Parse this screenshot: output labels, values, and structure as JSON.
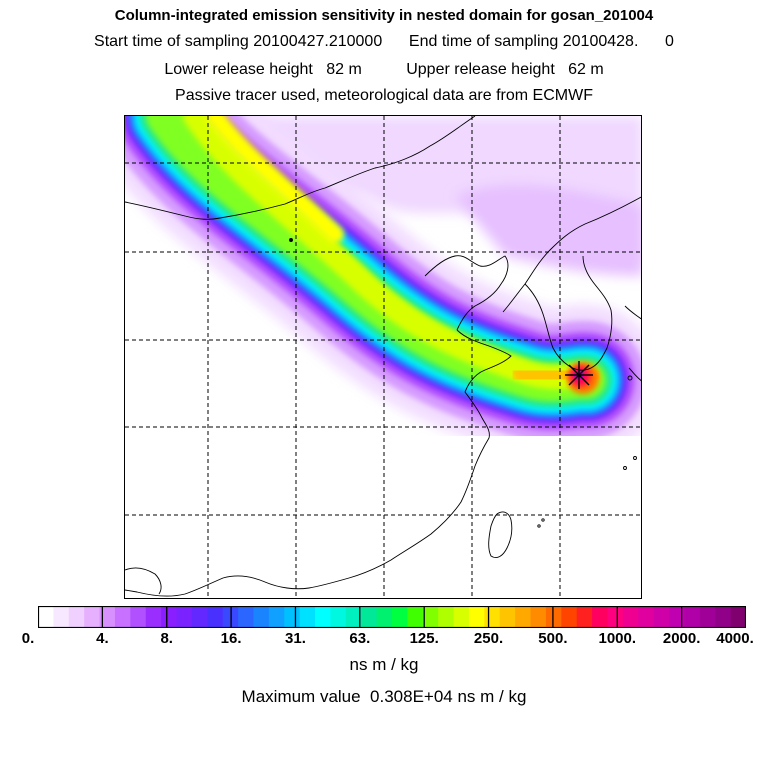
{
  "header": {
    "title": "Column-integrated emission sensitivity in nested domain for gosan_201004",
    "line2": "Start time of sampling 20100427.210000      End time of sampling 20100428.      0",
    "line3": "Lower release height   82 m          Upper release height   62 m",
    "line4": "Passive tracer used, meteorological data are from ECMWF"
  },
  "colorbar": {
    "tick_labels": [
      "0.",
      "4.",
      "8.",
      "16.",
      "31.",
      "63.",
      "125.",
      "250.",
      "500.",
      "1000.",
      "2000.",
      "4000."
    ],
    "colors": [
      "#ffffff",
      "#f8e8ff",
      "#f0d0ff",
      "#e6b0ff",
      "#d890ff",
      "#c870ff",
      "#b050ff",
      "#9a2eff",
      "#8a1eff",
      "#7a22ff",
      "#6228ff",
      "#4a30ff",
      "#3a48ff",
      "#2a66ff",
      "#1a84ff",
      "#10a0ff",
      "#00c0ff",
      "#00e0ff",
      "#00ffff",
      "#00f8e0",
      "#00f0c0",
      "#00e898",
      "#00f070",
      "#00ff40",
      "#40ff00",
      "#80ff00",
      "#b0ff00",
      "#d8ff00",
      "#ffff00",
      "#ffe000",
      "#ffc400",
      "#ffa800",
      "#ff8c00",
      "#ff6a00",
      "#ff4400",
      "#ff2020",
      "#ff0060",
      "#ff0080",
      "#f00090",
      "#e000a0",
      "#d000a8",
      "#c000b0",
      "#b000a8",
      "#a00098",
      "#900088",
      "#800070"
    ],
    "units": "ns m / kg",
    "max_label": "Maximum value  0.308E+04 ns m / kg"
  },
  "map": {
    "release_marker": "star-marker",
    "plume_colors": {
      "outer": "#f2dcff",
      "light": "#e2b4ff",
      "mid": "#c46eff",
      "violet": "#a030ff",
      "blue": "#2860ff",
      "cyan": "#00f0ff",
      "green": "#20f080",
      "lime": "#a0ff20",
      "yellow": "#ffff00",
      "orange": "#ff9000",
      "red": "#ff0060",
      "magenta": "#d000a0"
    }
  }
}
